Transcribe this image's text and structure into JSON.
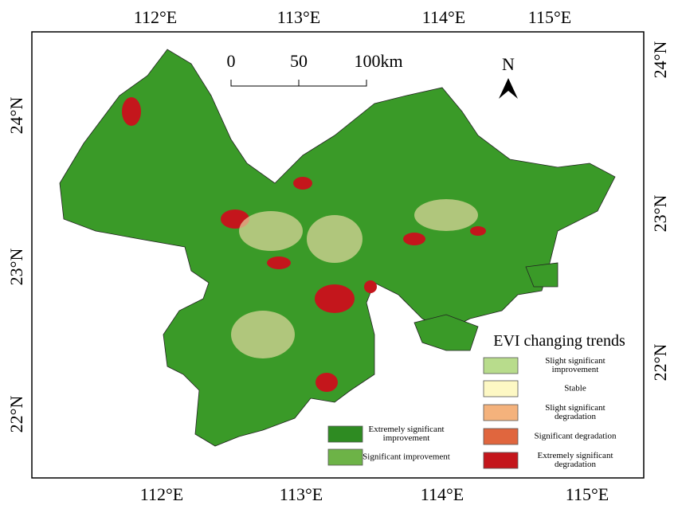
{
  "map": {
    "lon_labels_top": [
      "112°E",
      "113°E",
      "114°E",
      "115°E"
    ],
    "lon_labels_bottom": [
      "112°E",
      "113°E",
      "114°E",
      "115°E"
    ],
    "lat_labels_left": [
      "24°N",
      "23°N",
      "22°N"
    ],
    "lat_labels_right": [
      "24°N",
      "23°N",
      "22°N"
    ],
    "scale_bar": {
      "labels": [
        "0",
        "50",
        "100km"
      ]
    },
    "north_arrow": "N",
    "legend": {
      "title": "EVI changing trends",
      "items": [
        {
          "label": "Extremely significant improvement",
          "color": "#2e8b22"
        },
        {
          "label": "Significant improvement",
          "color": "#6db347"
        },
        {
          "label": "Slight significant improvement",
          "color": "#b8dc8c"
        },
        {
          "label": "Stable",
          "color": "#fdf8c4"
        },
        {
          "label": "Slight significant degradation",
          "color": "#f4b27c"
        },
        {
          "label": "Significant degradation",
          "color": "#e0663e"
        },
        {
          "label": "Extremely significant degradation",
          "color": "#c4161c"
        }
      ]
    }
  }
}
